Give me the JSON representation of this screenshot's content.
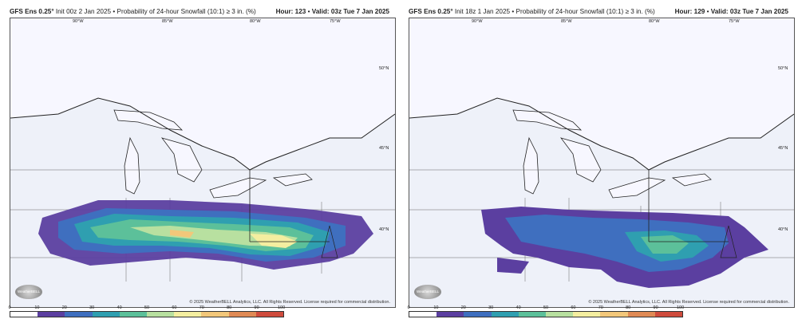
{
  "panels": [
    {
      "model": "GFS Ens 0.25°",
      "init": "Init 00z 2 Jan 2025",
      "product": "Probability of 24-hour Snowfall (10:1) ≥ 3 in. (%)",
      "hour": "Hour: 123",
      "valid": "Valid: 03z Tue 7 Jan 2025",
      "credit": "© 2025 WeatherBELL Analytics, LLC. All Rights Reserved. License required for commercial distribution.",
      "logo": "WeatherBELL",
      "lon_labels": [
        "90°W",
        "85°W",
        "80°W",
        "75°W"
      ],
      "lat_labels": [
        "50°N",
        "45°N",
        "40°N"
      ]
    },
    {
      "model": "GFS Ens 0.25°",
      "init": "Init 18z 1 Jan 2025",
      "product": "Probability of 24-hour Snowfall (10:1) ≥ 3 in. (%)",
      "hour": "Hour: 129",
      "valid": "Valid: 03z Tue 7 Jan 2025",
      "credit": "© 2025 WeatherBELL Analytics, LLC. All Rights Reserved. License required for commercial distribution.",
      "logo": "WeatherBELL",
      "lon_labels": [
        "90°W",
        "85°W",
        "80°W",
        "75°W"
      ],
      "lat_labels": [
        "50°N",
        "45°N",
        "40°N"
      ]
    }
  ],
  "colorbar": {
    "ticks": [
      "0",
      "10",
      "20",
      "30",
      "40",
      "50",
      "60",
      "70",
      "80",
      "90",
      "100"
    ],
    "colors": [
      "#ffffff",
      "#5b3fa0",
      "#3f6fbf",
      "#2f9fb0",
      "#5cc09a",
      "#b8e0a0",
      "#f4eea0",
      "#f2c77a",
      "#e08a55",
      "#cf4b3d",
      "#a11c3b"
    ]
  },
  "colors": {
    "land": "#eef1f9",
    "water": "#f7f7ff"
  }
}
